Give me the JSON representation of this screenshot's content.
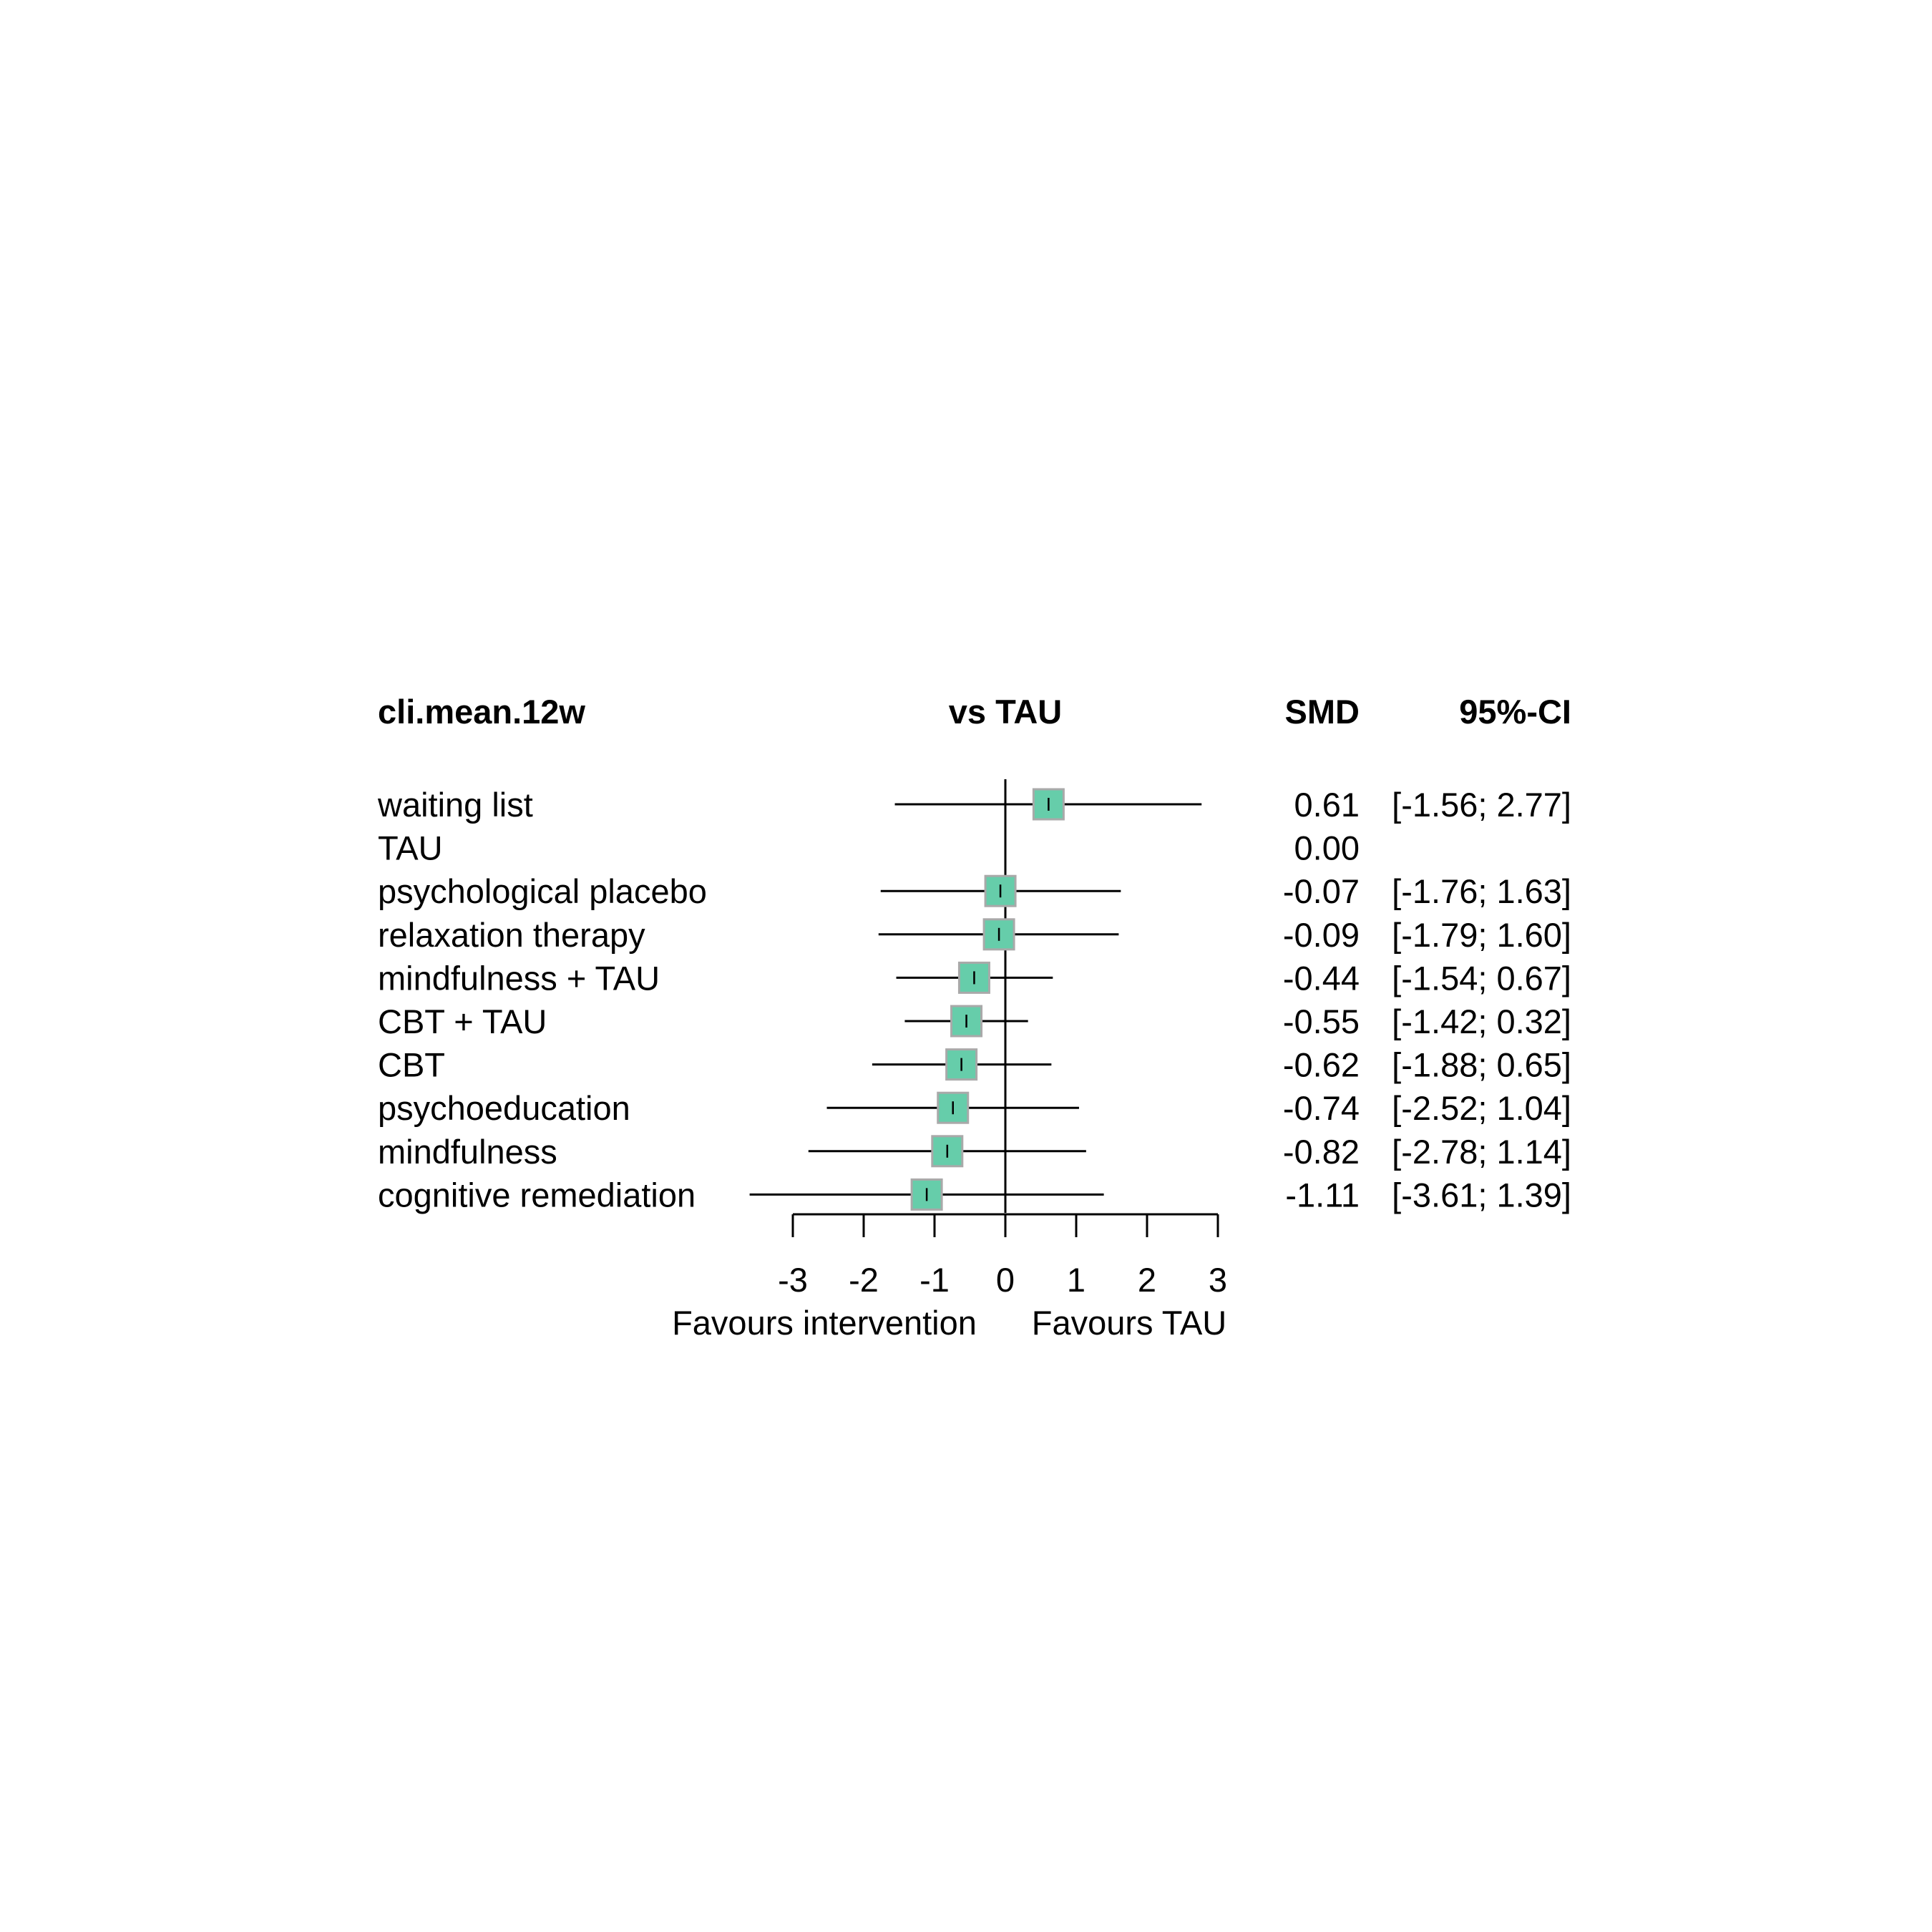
{
  "chart_data": {
    "type": "forest",
    "headers": {
      "label_col": "cli.mean.12w",
      "plot_col": "vs TAU",
      "smd_col": "SMD",
      "ci_col": "95%-CI"
    },
    "rows": [
      {
        "label": "waiting list",
        "smd": 0.61,
        "lower": -1.56,
        "upper": 2.77,
        "smd_text": "0.61",
        "ci_text": "[-1.56; 2.77]"
      },
      {
        "label": "TAU",
        "smd": 0.0,
        "lower": null,
        "upper": null,
        "smd_text": "0.00",
        "ci_text": ""
      },
      {
        "label": "psychological placebo",
        "smd": -0.07,
        "lower": -1.76,
        "upper": 1.63,
        "smd_text": "-0.07",
        "ci_text": "[-1.76; 1.63]"
      },
      {
        "label": "relaxation therapy",
        "smd": -0.09,
        "lower": -1.79,
        "upper": 1.6,
        "smd_text": "-0.09",
        "ci_text": "[-1.79; 1.60]"
      },
      {
        "label": "mindfulness + TAU",
        "smd": -0.44,
        "lower": -1.54,
        "upper": 0.67,
        "smd_text": "-0.44",
        "ci_text": "[-1.54; 0.67]"
      },
      {
        "label": "CBT + TAU",
        "smd": -0.55,
        "lower": -1.42,
        "upper": 0.32,
        "smd_text": "-0.55",
        "ci_text": "[-1.42; 0.32]"
      },
      {
        "label": "CBT",
        "smd": -0.62,
        "lower": -1.88,
        "upper": 0.65,
        "smd_text": "-0.62",
        "ci_text": "[-1.88; 0.65]"
      },
      {
        "label": "psychoeducation",
        "smd": -0.74,
        "lower": -2.52,
        "upper": 1.04,
        "smd_text": "-0.74",
        "ci_text": "[-2.52; 1.04]"
      },
      {
        "label": "mindfulness",
        "smd": -0.82,
        "lower": -2.78,
        "upper": 1.14,
        "smd_text": "-0.82",
        "ci_text": "[-2.78; 1.14]"
      },
      {
        "label": "cognitive remediation",
        "smd": -1.11,
        "lower": -3.61,
        "upper": 1.39,
        "smd_text": "-1.11",
        "ci_text": "[-3.61; 1.39]"
      }
    ],
    "xlim": [
      -3,
      3
    ],
    "xticks": [
      -3,
      -2,
      -1,
      0,
      1,
      2,
      3
    ],
    "xtick_labels": [
      "-3",
      "-2",
      "-1",
      "0",
      "1",
      "2",
      "3"
    ],
    "reference_line": 0,
    "xlabel_left": "Favours intervention",
    "xlabel_right": "Favours TAU",
    "marker_color": "#66CDAA",
    "marker_border_color": "#A9A9A9",
    "line_color": "#000000"
  }
}
